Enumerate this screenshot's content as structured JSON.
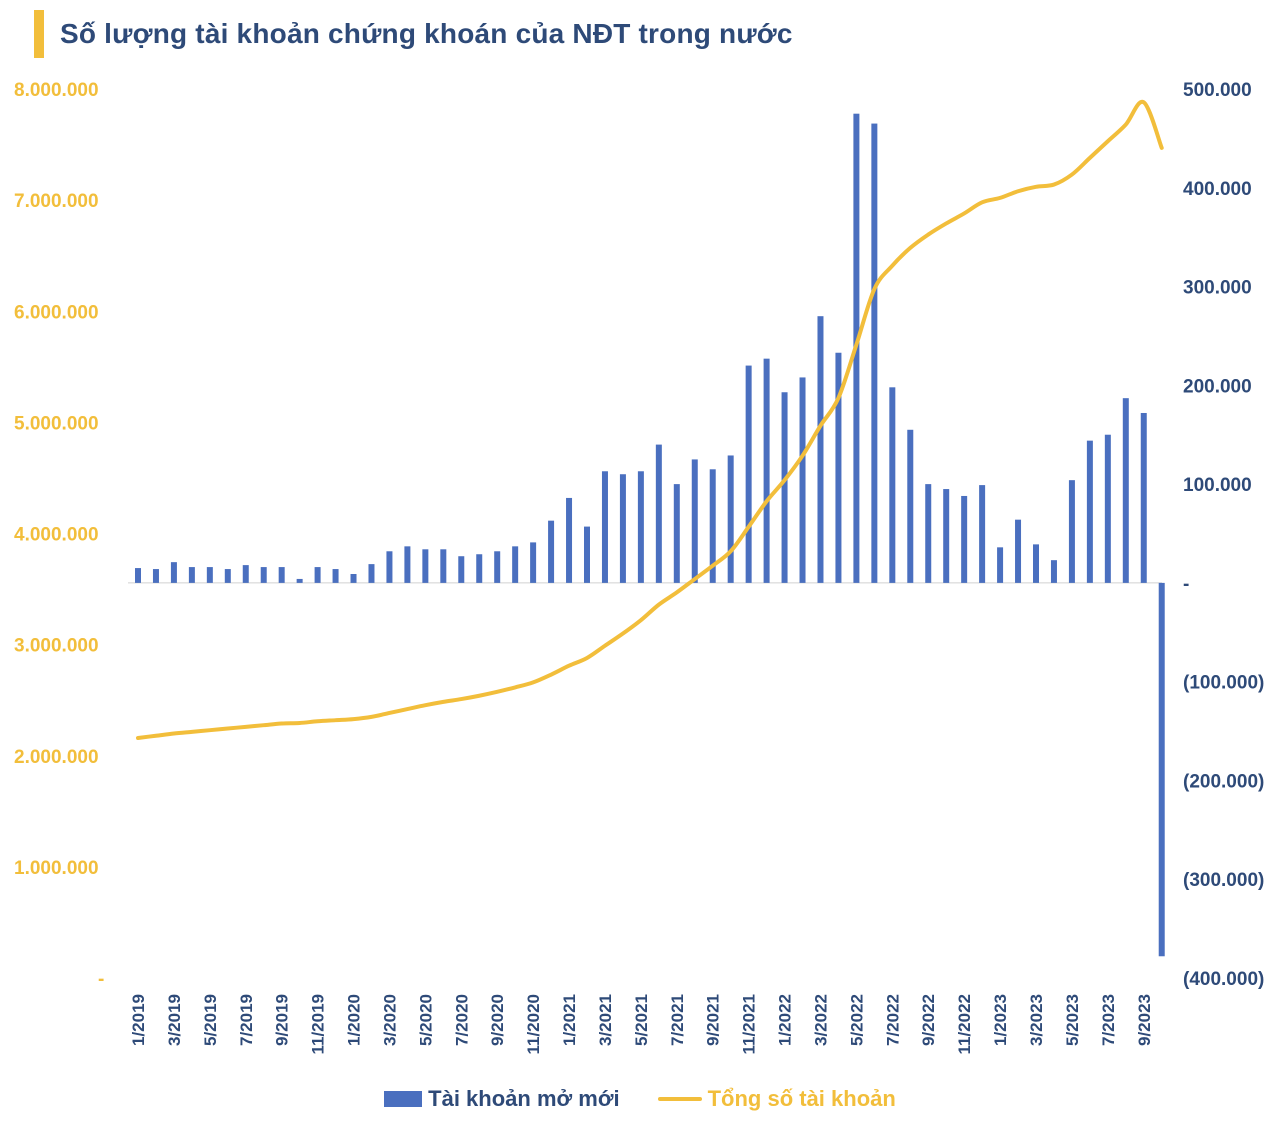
{
  "chart_data": {
    "type": "bar+line",
    "title": "Số lượng tài khoản chứng khoán của NĐT trong nước",
    "colors": {
      "bars": "#4A6FBF",
      "line": "#F2BE3B",
      "title": "#2E4A78",
      "accent": "#F2BE3B"
    },
    "categories": [
      "1/2019",
      "2/2019",
      "3/2019",
      "4/2019",
      "5/2019",
      "6/2019",
      "7/2019",
      "8/2019",
      "9/2019",
      "10/2019",
      "11/2019",
      "12/2019",
      "1/2020",
      "2/2020",
      "3/2020",
      "4/2020",
      "5/2020",
      "6/2020",
      "7/2020",
      "8/2020",
      "9/2020",
      "10/2020",
      "11/2020",
      "12/2020",
      "1/2021",
      "2/2021",
      "3/2021",
      "4/2021",
      "5/2021",
      "6/2021",
      "7/2021",
      "8/2021",
      "9/2021",
      "10/2021",
      "11/2021",
      "12/2021",
      "1/2022",
      "2/2022",
      "3/2022",
      "4/2022",
      "5/2022",
      "6/2022",
      "7/2022",
      "8/2022",
      "9/2022",
      "10/2022",
      "11/2022",
      "12/2022",
      "1/2023",
      "2/2023",
      "3/2023",
      "4/2023",
      "5/2023",
      "6/2023",
      "7/2023",
      "8/2023",
      "9/2023",
      "10/2023"
    ],
    "x_tick_labels": [
      "1/2019",
      "3/2019",
      "5/2019",
      "7/2019",
      "9/2019",
      "11/2019",
      "1/2020",
      "3/2020",
      "5/2020",
      "7/2020",
      "9/2020",
      "11/2020",
      "1/2021",
      "3/2021",
      "5/2021",
      "7/2021",
      "9/2021",
      "11/2021",
      "1/2022",
      "3/2022",
      "5/2022",
      "7/2022",
      "9/2022",
      "11/2022",
      "1/2023",
      "3/2023",
      "5/2023",
      "7/2023",
      "9/2023"
    ],
    "series": [
      {
        "name": "Tài khoản mở mới",
        "type": "bar",
        "axis": "right",
        "values": [
          15000,
          14000,
          21000,
          16000,
          16000,
          14000,
          18000,
          16000,
          16000,
          4000,
          16000,
          14000,
          9000,
          19000,
          32000,
          37000,
          34000,
          34000,
          27000,
          29000,
          32000,
          37000,
          41000,
          63000,
          86000,
          57000,
          113000,
          110000,
          113000,
          140000,
          100000,
          125000,
          115000,
          129000,
          220000,
          227000,
          193000,
          208000,
          270000,
          233000,
          475000,
          465000,
          198000,
          155000,
          100000,
          95000,
          88000,
          99000,
          36000,
          64000,
          39000,
          23000,
          104000,
          144000,
          150000,
          187000,
          172000,
          -378000
        ]
      },
      {
        "name": "Tổng số tài khoản",
        "type": "line",
        "axis": "left",
        "values": [
          2160000,
          2180000,
          2200000,
          2215000,
          2230000,
          2245000,
          2260000,
          2275000,
          2290000,
          2295000,
          2310000,
          2320000,
          2330000,
          2350000,
          2385000,
          2420000,
          2455000,
          2485000,
          2510000,
          2540000,
          2575000,
          2615000,
          2660000,
          2730000,
          2810000,
          2880000,
          2990000,
          3100000,
          3220000,
          3360000,
          3470000,
          3590000,
          3710000,
          3840000,
          4060000,
          4290000,
          4480000,
          4700000,
          4970000,
          5220000,
          5700000,
          6200000,
          6410000,
          6570000,
          6690000,
          6790000,
          6880000,
          6980000,
          7020000,
          7080000,
          7120000,
          7140000,
          7230000,
          7380000,
          7530000,
          7680000,
          7880000,
          7470000
        ]
      }
    ],
    "y_left": {
      "min": 0,
      "max": 8000000,
      "step": 1000000,
      "tick_labels": [
        "-",
        "1.000.000",
        "2.000.000",
        "3.000.000",
        "4.000.000",
        "5.000.000",
        "6.000.000",
        "7.000.000",
        "8.000.000"
      ]
    },
    "y_right": {
      "min": -400000,
      "max": 500000,
      "step": 100000,
      "tick_labels": [
        "(400.000)",
        "(300.000)",
        "(200.000)",
        "(100.000)",
        "-",
        "100.000",
        "200.000",
        "300.000",
        "400.000",
        "500.000"
      ]
    },
    "legend": {
      "position": "bottom",
      "items": [
        "Tài khoản mở mới",
        "Tổng số tài khoản"
      ]
    },
    "grid": false
  }
}
